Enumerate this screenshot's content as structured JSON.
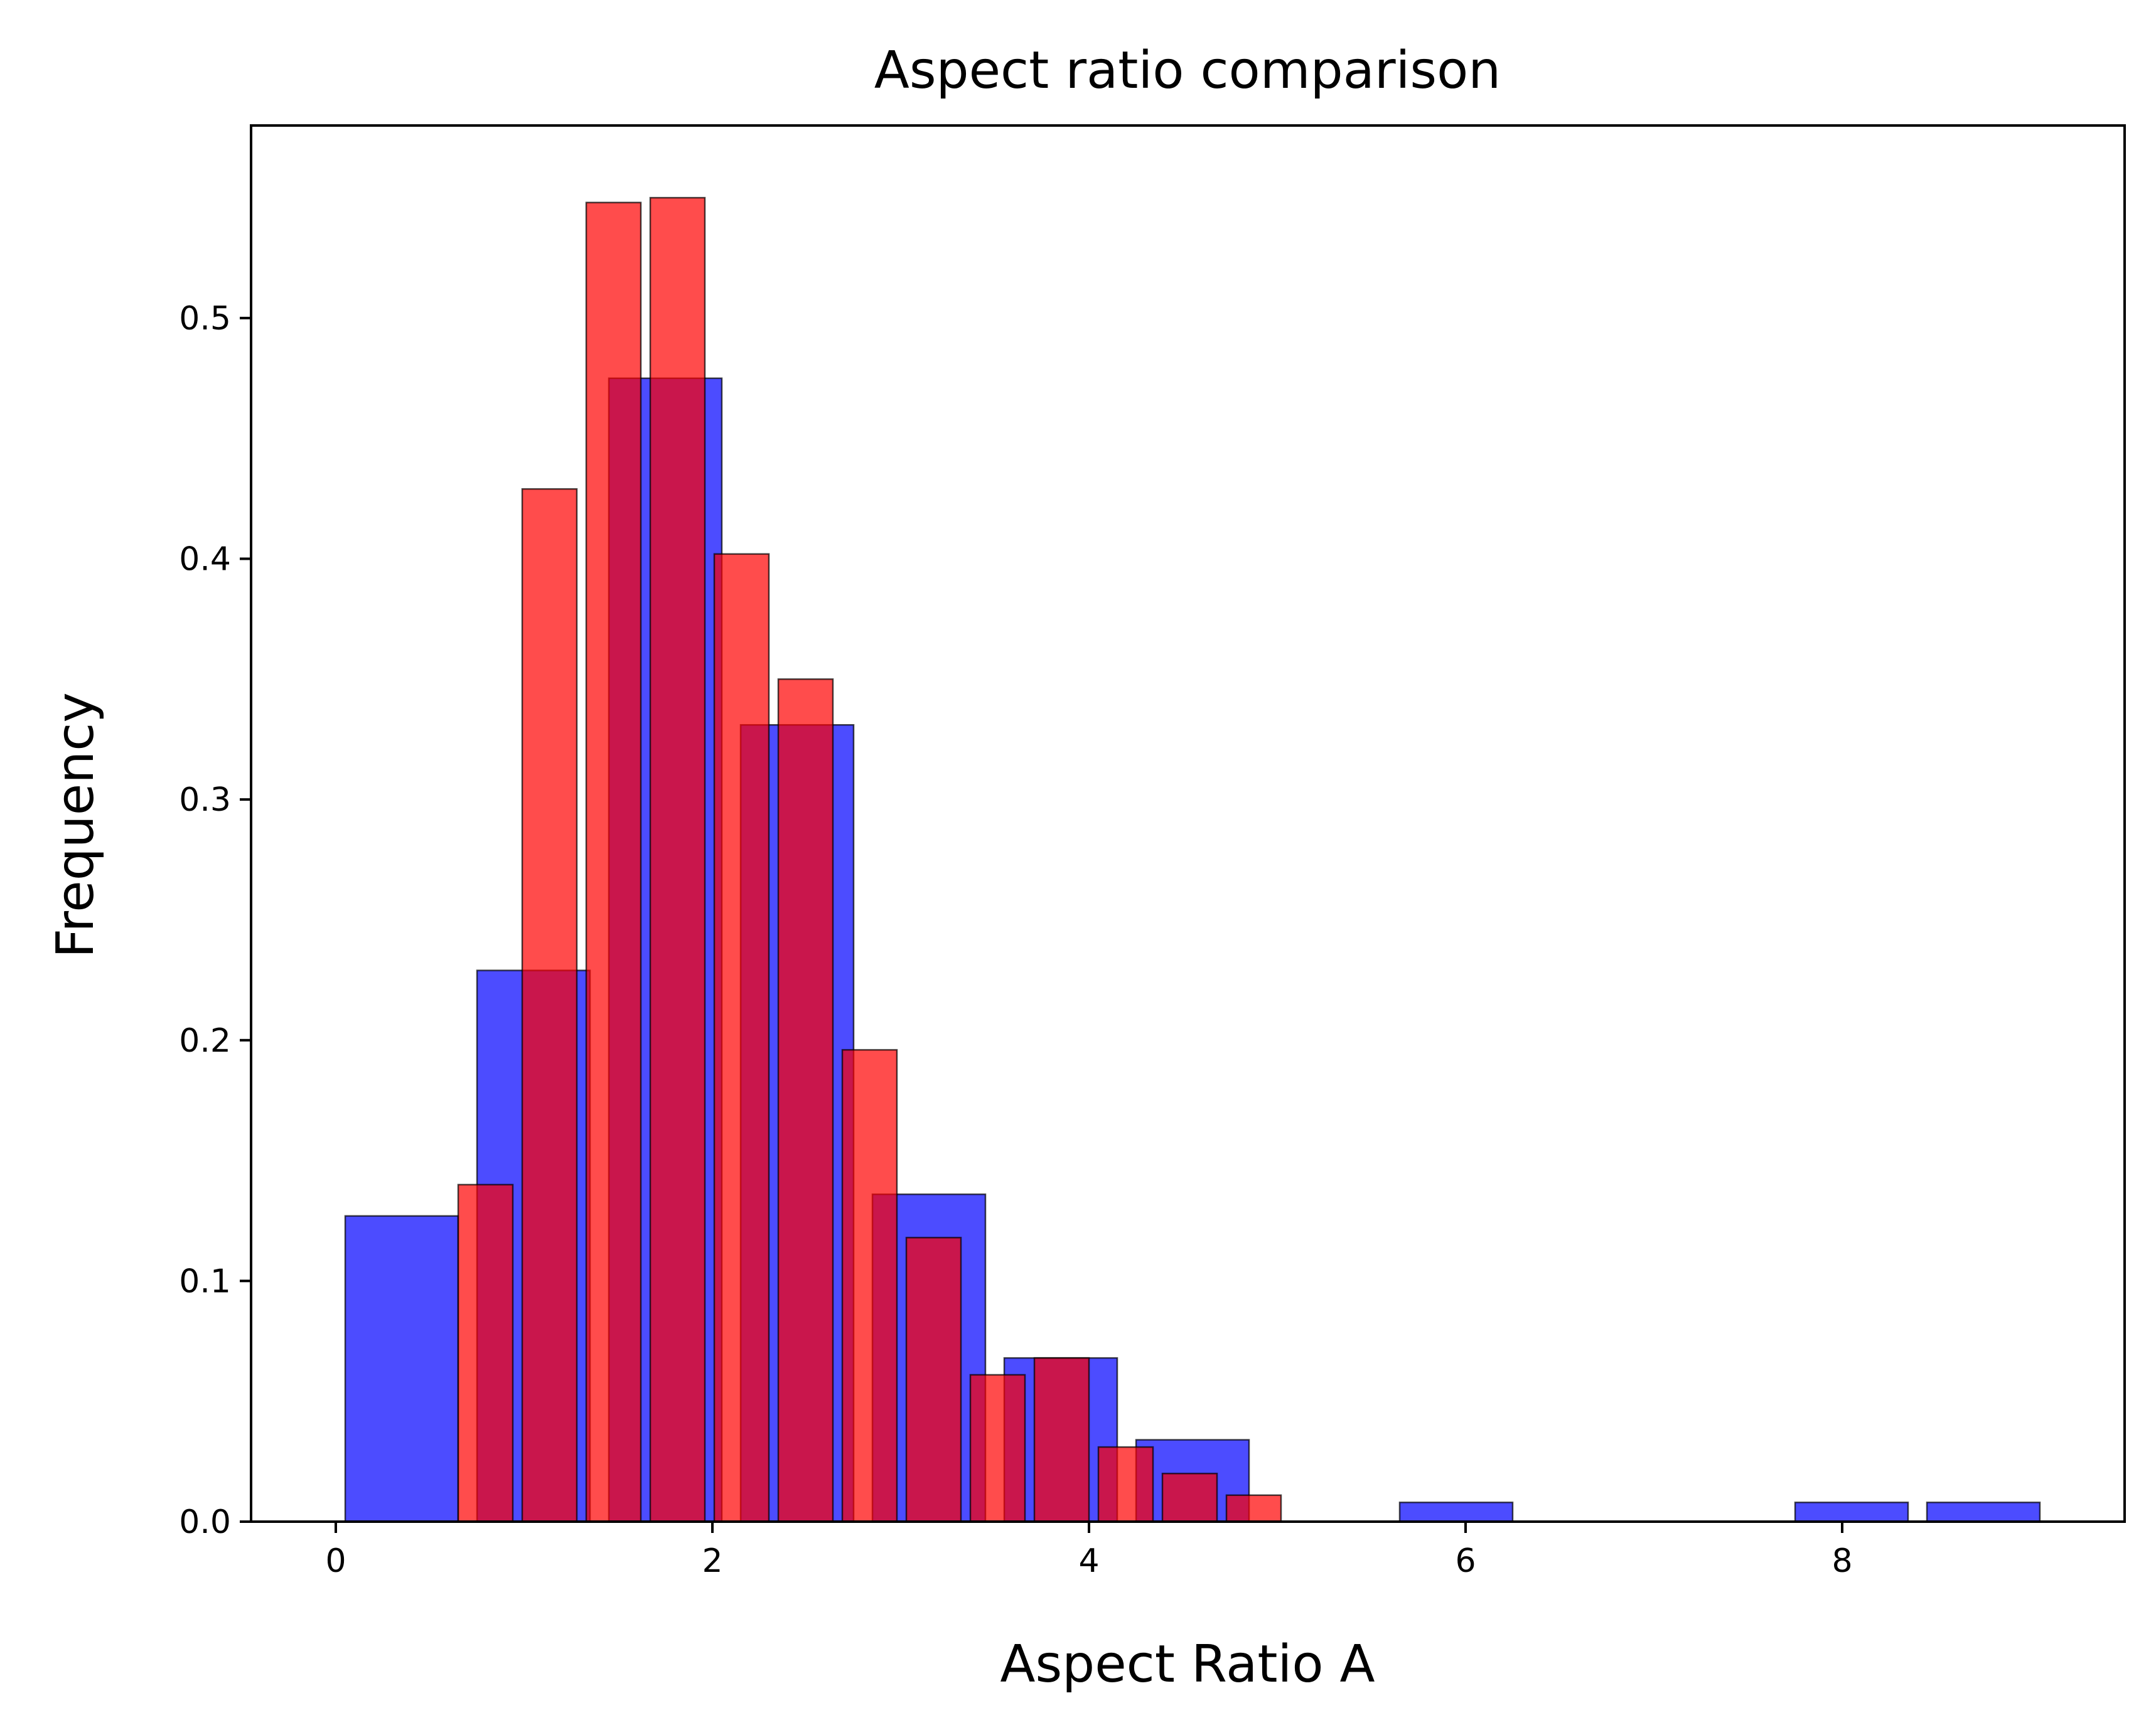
{
  "chart_data": {
    "type": "bar",
    "title": "Aspect ratio comparison",
    "xlabel": "Aspect Ratio A",
    "ylabel": "Frequency",
    "xlim": [
      -0.45,
      9.5
    ],
    "ylim": [
      0,
      0.58
    ],
    "xticks": [
      {
        "value": 0,
        "label": "0"
      },
      {
        "value": 2,
        "label": "2"
      },
      {
        "value": 4,
        "label": "4"
      },
      {
        "value": 6,
        "label": "6"
      },
      {
        "value": 8,
        "label": "8"
      }
    ],
    "yticks": [
      {
        "value": 0.0,
        "label": "0.0"
      },
      {
        "value": 0.1,
        "label": "0.1"
      },
      {
        "value": 0.2,
        "label": "0.2"
      },
      {
        "value": 0.3,
        "label": "0.3"
      },
      {
        "value": 0.4,
        "label": "0.4"
      },
      {
        "value": 0.5,
        "label": "0.5"
      }
    ],
    "grid": false,
    "legend": "none",
    "series": [
      {
        "color": "#0000ff",
        "opacity": 0.7,
        "bars": [
          {
            "x0": 0.05,
            "x1": 0.65,
            "value": 0.127
          },
          {
            "x0": 0.75,
            "x1": 1.35,
            "value": 0.229
          },
          {
            "x0": 1.45,
            "x1": 2.05,
            "value": 0.475
          },
          {
            "x0": 2.15,
            "x1": 2.75,
            "value": 0.331
          },
          {
            "x0": 2.85,
            "x1": 3.45,
            "value": 0.136
          },
          {
            "x0": 3.55,
            "x1": 4.15,
            "value": 0.068
          },
          {
            "x0": 4.25,
            "x1": 4.85,
            "value": 0.034
          },
          {
            "x0": 5.65,
            "x1": 6.25,
            "value": 0.008
          },
          {
            "x0": 7.75,
            "x1": 8.35,
            "value": 0.008
          },
          {
            "x0": 8.45,
            "x1": 9.05,
            "value": 0.008
          }
        ]
      },
      {
        "color": "#ff0000",
        "opacity": 0.7,
        "bars": [
          {
            "x0": 0.65,
            "x1": 0.94,
            "value": 0.14
          },
          {
            "x0": 0.99,
            "x1": 1.28,
            "value": 0.429
          },
          {
            "x0": 1.33,
            "x1": 1.62,
            "value": 0.548
          },
          {
            "x0": 1.67,
            "x1": 1.96,
            "value": 0.55
          },
          {
            "x0": 2.01,
            "x1": 2.3,
            "value": 0.402
          },
          {
            "x0": 2.35,
            "x1": 2.64,
            "value": 0.35
          },
          {
            "x0": 2.69,
            "x1": 2.98,
            "value": 0.196
          },
          {
            "x0": 3.03,
            "x1": 3.32,
            "value": 0.118
          },
          {
            "x0": 3.37,
            "x1": 3.66,
            "value": 0.061
          },
          {
            "x0": 3.71,
            "x1": 4.0,
            "value": 0.068
          },
          {
            "x0": 4.05,
            "x1": 4.34,
            "value": 0.031
          },
          {
            "x0": 4.39,
            "x1": 4.68,
            "value": 0.02
          },
          {
            "x0": 4.73,
            "x1": 5.02,
            "value": 0.011
          }
        ]
      }
    ]
  }
}
